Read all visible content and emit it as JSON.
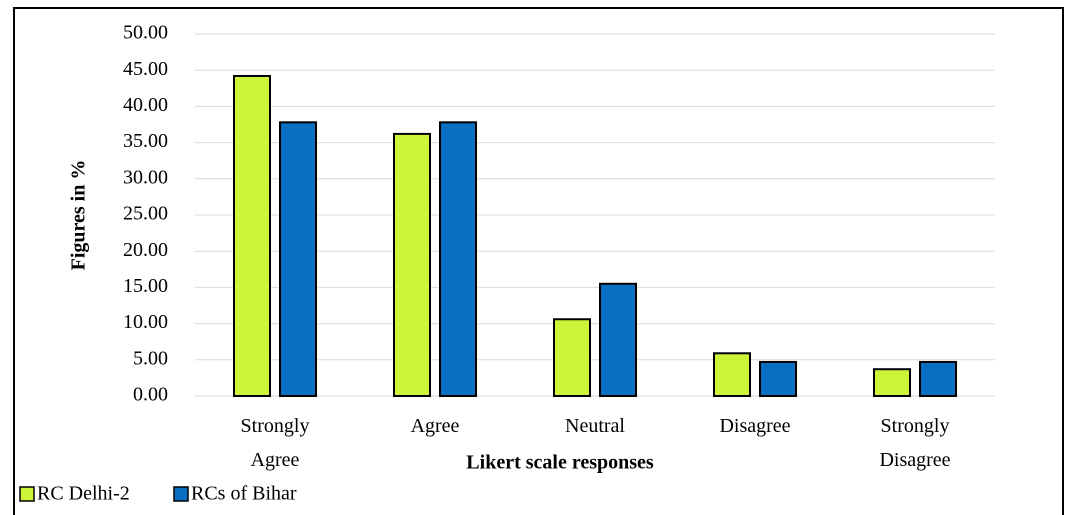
{
  "chart_data": {
    "type": "bar",
    "x_label": "Likert scale responses",
    "y_label": "Figures in %",
    "categories": [
      "Strongly Agree",
      "Agree",
      "Neutral",
      "Disagree",
      "Strongly Disagree"
    ],
    "series": [
      {
        "name": "RC Delhi-2",
        "color": "#ccf53a",
        "values": [
          44.2,
          36.2,
          10.6,
          5.9,
          3.7
        ]
      },
      {
        "name": "RCs of Bihar",
        "color": "#0a6fc2",
        "values": [
          37.8,
          37.8,
          15.5,
          4.7,
          4.7
        ]
      }
    ],
    "ylim": [
      0,
      50
    ],
    "yticks": [
      {
        "value": 0,
        "label": "0.00"
      },
      {
        "value": 5,
        "label": "5.00"
      },
      {
        "value": 10,
        "label": "10.00"
      },
      {
        "value": 15,
        "label": "15.00"
      },
      {
        "value": 20,
        "label": "20.00"
      },
      {
        "value": 25,
        "label": "25.00"
      },
      {
        "value": 30,
        "label": "30.00"
      },
      {
        "value": 35,
        "label": "35.00"
      },
      {
        "value": 40,
        "label": "40.00"
      },
      {
        "value": 45,
        "label": "45.00"
      },
      {
        "value": 50,
        "label": "50.00"
      }
    ],
    "grid": true,
    "legend": "bottom-left"
  }
}
